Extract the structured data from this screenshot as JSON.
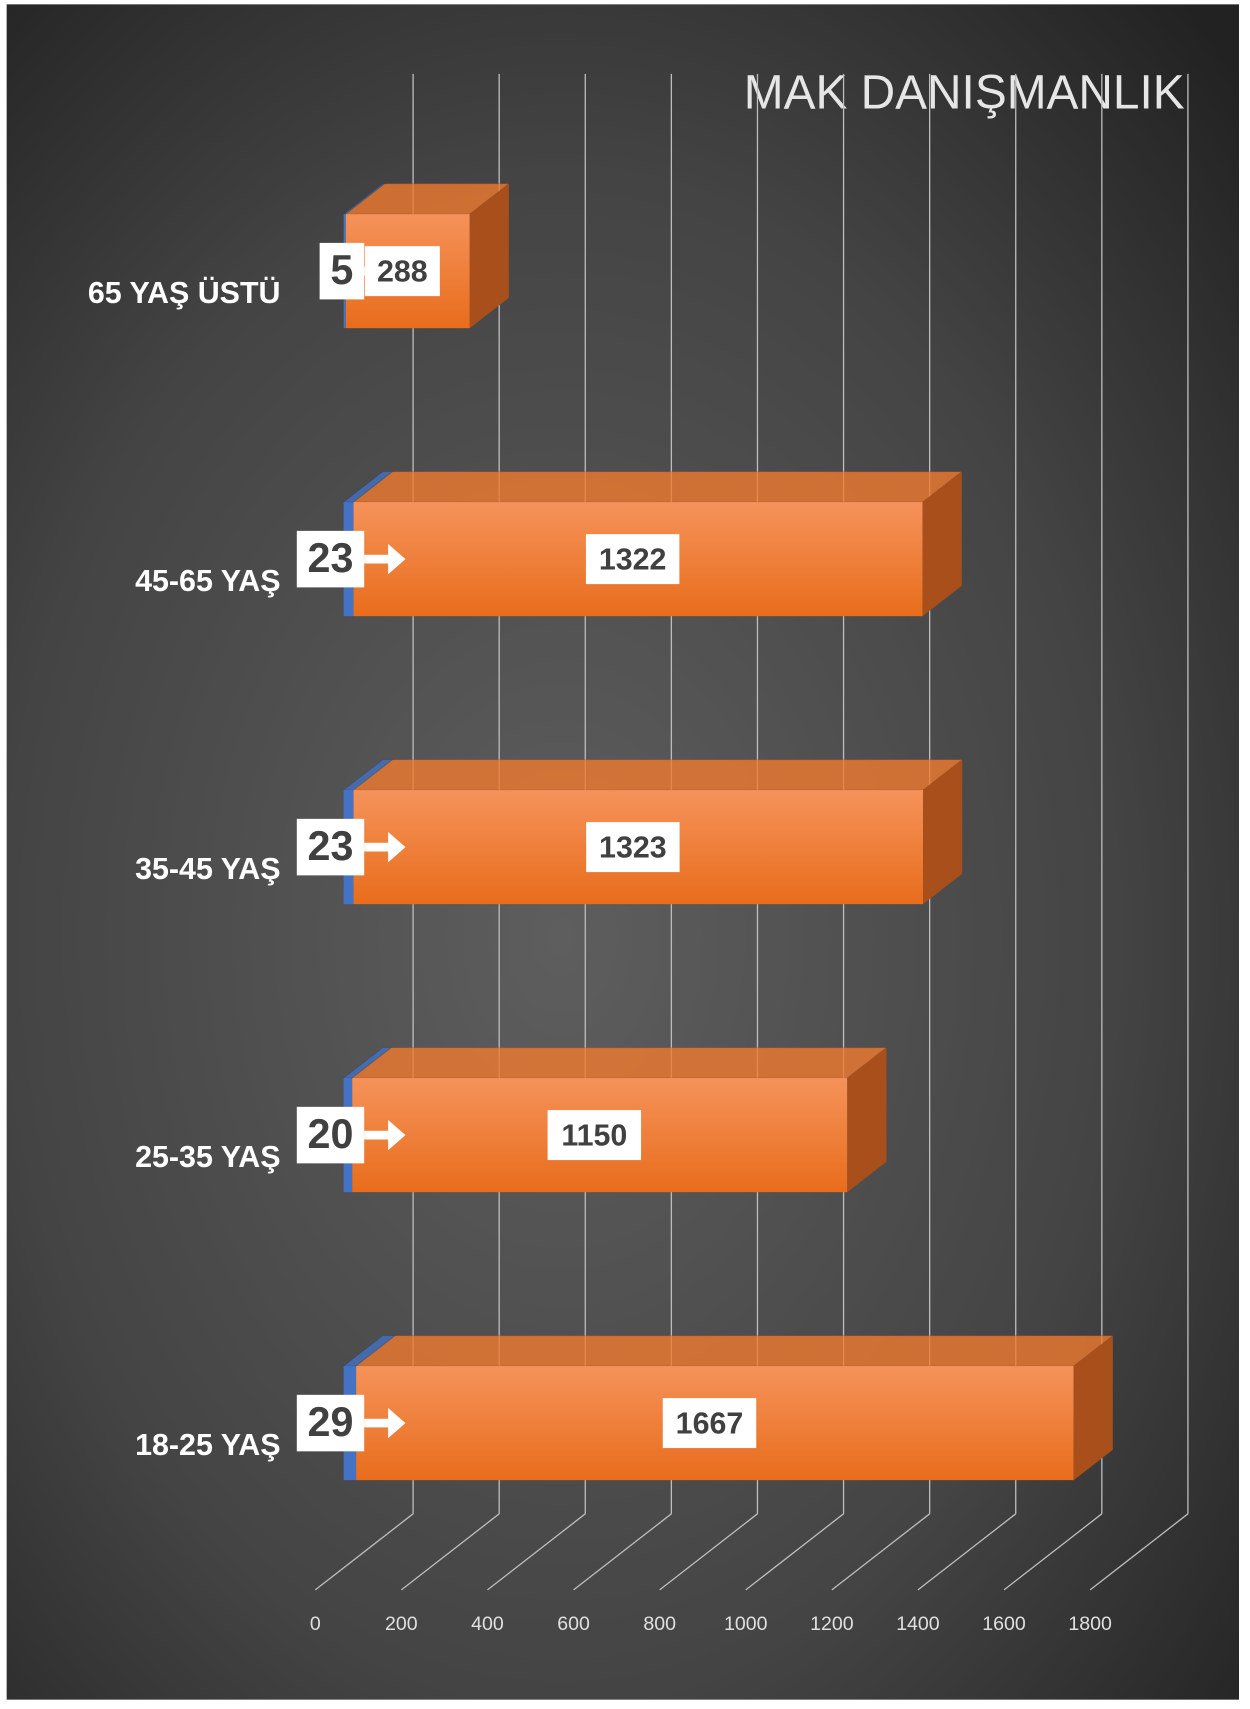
{
  "chart_data": {
    "type": "bar3d_stacked_horizontal",
    "title": "MAK DANIŞMANLIK",
    "categories": [
      "65 YAŞ ÜSTÜ",
      "45-65 YAŞ",
      "35-45 YAŞ",
      "25-35 YAŞ",
      "18-25 YAŞ"
    ],
    "series": [
      {
        "color": "#4472c4",
        "values": [
          5,
          23,
          23,
          20,
          29
        ]
      },
      {
        "color": "#f07a2e",
        "values": [
          288,
          1322,
          1323,
          1150,
          1667
        ]
      }
    ],
    "xlim": [
      0,
      1800
    ],
    "xticks": [
      0,
      200,
      400,
      600,
      800,
      1000,
      1200,
      1400,
      1600,
      1800
    ],
    "grid": true
  }
}
